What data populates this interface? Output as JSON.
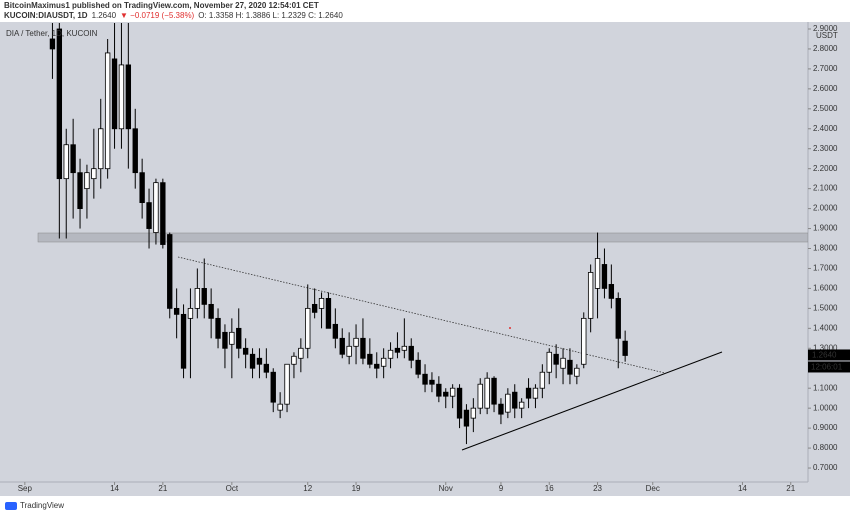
{
  "header": {
    "publisher_line": "BitcoinMaximus1 published on TradingView.com, November 27, 2020 12:54:01 CET",
    "symbol": "KUCOIN:DIAUSDT, 1D",
    "last": "1.2640",
    "change": "▼ −0.0719 (−5.38%)",
    "ohlc": "O: 1.3358 H: 1.3886 L: 1.2329 C: 1.2640"
  },
  "footer": {
    "brand": "TradingView"
  },
  "chart_data": {
    "type": "candlestick",
    "title": "DIA / Tether, 1D, KUCOIN",
    "y_unit": "USDT",
    "last_price_label": "1.2640",
    "countdown": "12:06:01",
    "up_color": "#ffffff",
    "down_color": "#000000",
    "wick_color": "#000000",
    "x": [
      4,
      5,
      6,
      7,
      8,
      9,
      10,
      11,
      12,
      13,
      14,
      15,
      16,
      17,
      18,
      19,
      20,
      21,
      22,
      23,
      24,
      25,
      26,
      27,
      28,
      29,
      30,
      31,
      32,
      33,
      34,
      35,
      36,
      37,
      38,
      39,
      40,
      41,
      42,
      43,
      44,
      45,
      46,
      47,
      48,
      49,
      50,
      51,
      52,
      53,
      54,
      55,
      56,
      57,
      58,
      59,
      60,
      61,
      62,
      63,
      64,
      65,
      66,
      67,
      68,
      69,
      70,
      71,
      72,
      73,
      74,
      75,
      76,
      77,
      78,
      79,
      80,
      81,
      82,
      83,
      84,
      85,
      86,
      87
    ],
    "open": [
      2.85,
      2.9,
      2.15,
      2.32,
      2.18,
      2.1,
      2.15,
      2.2,
      2.2,
      2.75,
      2.4,
      2.72,
      2.4,
      2.18,
      2.03,
      1.88,
      2.13,
      1.87,
      1.5,
      1.47,
      1.45,
      1.5,
      1.6,
      1.52,
      1.45,
      1.38,
      1.32,
      1.4,
      1.3,
      1.27,
      1.25,
      1.22,
      1.18,
      0.99,
      1.02,
      1.22,
      1.25,
      1.3,
      1.52,
      1.5,
      1.55,
      1.42,
      1.35,
      1.26,
      1.31,
      1.35,
      1.27,
      1.22,
      1.21,
      1.25,
      1.3,
      1.29,
      1.31,
      1.24,
      1.17,
      1.14,
      1.12,
      1.08,
      1.06,
      1.1,
      0.99,
      0.95,
      1.0,
      1.0,
      1.15,
      1.02,
      0.98,
      1.08,
      1.0,
      1.1,
      1.05,
      1.1,
      1.18,
      1.27,
      1.2,
      1.24,
      1.16,
      1.22,
      1.45,
      1.6,
      1.72,
      1.62,
      1.55,
      1.3358
    ],
    "high": [
      2.93,
      2.93,
      2.4,
      2.45,
      2.25,
      2.22,
      2.4,
      2.55,
      2.85,
      2.93,
      2.93,
      2.93,
      2.5,
      2.25,
      2.1,
      2.15,
      2.15,
      1.88,
      1.6,
      1.52,
      1.6,
      1.7,
      1.75,
      1.6,
      1.5,
      1.42,
      1.45,
      1.5,
      1.35,
      1.3,
      1.3,
      1.3,
      1.2,
      1.08,
      1.22,
      1.28,
      1.35,
      1.62,
      1.6,
      1.58,
      1.58,
      1.5,
      1.4,
      1.38,
      1.42,
      1.45,
      1.35,
      1.28,
      1.3,
      1.33,
      1.38,
      1.45,
      1.35,
      1.28,
      1.22,
      1.18,
      1.16,
      1.1,
      1.12,
      1.12,
      1.02,
      1.05,
      1.15,
      1.18,
      1.16,
      1.05,
      1.1,
      1.12,
      1.05,
      1.15,
      1.12,
      1.22,
      1.3,
      1.32,
      1.3,
      1.3,
      1.22,
      1.48,
      1.72,
      1.88,
      1.8,
      1.72,
      1.58,
      1.3886
    ],
    "low": [
      2.65,
      1.85,
      1.85,
      1.95,
      1.9,
      1.95,
      2.05,
      2.1,
      2.15,
      2.3,
      2.3,
      2.2,
      2.1,
      1.95,
      1.8,
      1.82,
      1.8,
      1.45,
      1.35,
      1.15,
      1.15,
      1.45,
      1.45,
      1.35,
      1.3,
      1.2,
      1.15,
      1.25,
      1.2,
      1.15,
      1.15,
      1.15,
      0.98,
      0.95,
      0.98,
      1.15,
      1.18,
      1.25,
      1.45,
      1.4,
      1.4,
      1.3,
      1.25,
      1.22,
      1.22,
      1.22,
      1.2,
      1.15,
      1.15,
      1.2,
      1.25,
      1.25,
      1.2,
      1.15,
      1.08,
      1.08,
      1.03,
      1.0,
      1.0,
      0.9,
      0.82,
      0.88,
      0.97,
      0.97,
      0.98,
      0.92,
      0.95,
      0.95,
      0.95,
      1.0,
      1.0,
      1.05,
      1.12,
      1.15,
      1.12,
      1.12,
      1.12,
      1.2,
      1.38,
      1.45,
      1.55,
      1.5,
      1.2,
      1.2329
    ],
    "close": [
      2.8,
      2.15,
      2.32,
      2.18,
      2.0,
      2.18,
      2.2,
      2.4,
      2.78,
      2.4,
      2.72,
      2.4,
      2.18,
      2.03,
      1.9,
      2.13,
      1.82,
      1.5,
      1.47,
      1.2,
      1.5,
      1.6,
      1.52,
      1.45,
      1.35,
      1.3,
      1.38,
      1.3,
      1.27,
      1.2,
      1.22,
      1.18,
      1.03,
      1.02,
      1.22,
      1.26,
      1.3,
      1.5,
      1.48,
      1.55,
      1.4,
      1.35,
      1.27,
      1.31,
      1.35,
      1.25,
      1.22,
      1.2,
      1.25,
      1.29,
      1.28,
      1.31,
      1.24,
      1.17,
      1.12,
      1.12,
      1.06,
      1.06,
      1.1,
      0.95,
      0.91,
      1.0,
      1.12,
      1.15,
      1.02,
      0.97,
      1.07,
      1.0,
      1.03,
      1.05,
      1.1,
      1.18,
      1.28,
      1.22,
      1.25,
      1.17,
      1.2,
      1.45,
      1.68,
      1.75,
      1.6,
      1.55,
      1.35,
      1.264
    ],
    "xlim": [
      -3.6,
      113.5
    ],
    "xticks": [
      {
        "value": 0,
        "label": "Sep"
      },
      {
        "value": 13,
        "label": "14"
      },
      {
        "value": 20,
        "label": "21"
      },
      {
        "value": 30,
        "label": "Oct"
      },
      {
        "value": 41,
        "label": "12"
      },
      {
        "value": 48,
        "label": "19"
      },
      {
        "value": 61,
        "label": "Nov"
      },
      {
        "value": 69,
        "label": "9"
      },
      {
        "value": 76,
        "label": "16"
      },
      {
        "value": 83,
        "label": "23"
      },
      {
        "value": 91,
        "label": "Dec"
      },
      {
        "value": 104,
        "label": "14"
      },
      {
        "value": 111,
        "label": "21"
      }
    ],
    "ylim": [
      0.63,
      2.935
    ],
    "yticks": [
      {
        "value": 0.7,
        "label": "0.7000"
      },
      {
        "value": 0.8,
        "label": "0.8000"
      },
      {
        "value": 0.9,
        "label": "0.9000"
      },
      {
        "value": 1.0,
        "label": "1.0000"
      },
      {
        "value": 1.1,
        "label": "1.1000"
      },
      {
        "value": 1.2,
        "label": "1.2000"
      },
      {
        "value": 1.3,
        "label": "1.3000"
      },
      {
        "value": 1.4,
        "label": "1.4000"
      },
      {
        "value": 1.5,
        "label": "1.5000"
      },
      {
        "value": 1.6,
        "label": "1.6000"
      },
      {
        "value": 1.7,
        "label": "1.7000"
      },
      {
        "value": 1.8,
        "label": "1.8000"
      },
      {
        "value": 1.9,
        "label": "1.9000"
      },
      {
        "value": 2.0,
        "label": "2.0000"
      },
      {
        "value": 2.1,
        "label": "2.1000"
      },
      {
        "value": 2.2,
        "label": "2.2000"
      },
      {
        "value": 2.3,
        "label": "2.3000"
      },
      {
        "value": 2.4,
        "label": "2.4000"
      },
      {
        "value": 2.5,
        "label": "2.5000"
      },
      {
        "value": 2.6,
        "label": "2.6000"
      },
      {
        "value": 2.7,
        "label": "2.7000"
      },
      {
        "value": 2.8,
        "label": "2.8000"
      },
      {
        "value": 2.9,
        "label": "2.9000"
      }
    ],
    "grid": false
  }
}
